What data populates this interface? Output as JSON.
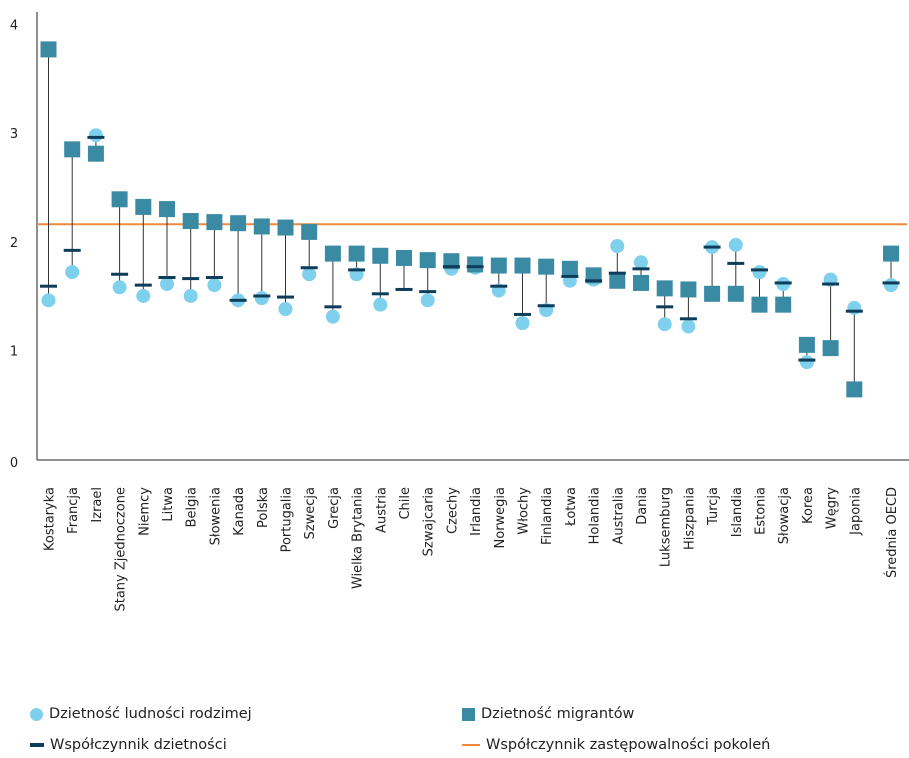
{
  "colors": {
    "native": "#7fd0ec",
    "migrant": "#3b8aa4",
    "total": "#0d3d59",
    "replacement": "#f08a3c",
    "whisker": "#333333",
    "axis": "#222222"
  },
  "legend": {
    "native": "Dzietność ludności rodzimej",
    "migrant": "Dzietność migrantów",
    "total": "Współczynnik dzietności",
    "replacement": "Współczynnik zastępowalności pokoleń"
  },
  "chart_data": {
    "type": "scatter",
    "title": "",
    "xlabel": "",
    "ylabel": "",
    "ylim": [
      0,
      4
    ],
    "yticks": [
      "0",
      "1",
      "2",
      "3",
      "4"
    ],
    "replacement_level": 2.17,
    "categories": [
      "Kostaryka",
      "Francja",
      "Izrael",
      "Stany Zjednoczone",
      "Niemcy",
      "Litwa",
      "Belgia",
      "Słowenia",
      "Kanada",
      "Polska",
      "Portugalia",
      "Szwecja",
      "Grecja",
      "Wielka Brytania",
      "Austria",
      "Chile",
      "Szwajcaria",
      "Czechy",
      "Irlandia",
      "Norwegia",
      "Włochy",
      "Finlandia",
      "Łotwa",
      "Holandia",
      "Australia",
      "Dania",
      "Luksemburg",
      "Hiszpania",
      "Turcja",
      "Islandia",
      "Estonia",
      "Słowacja",
      "Korea",
      "Węgry",
      "Japonia",
      "Średnia OECD"
    ],
    "series": [
      {
        "name": "Dzietność ludności rodzimej",
        "key": "native",
        "values": [
          1.47,
          1.73,
          2.99,
          1.59,
          1.51,
          1.62,
          1.51,
          1.61,
          1.47,
          1.49,
          1.39,
          1.71,
          1.32,
          1.71,
          1.43,
          null,
          1.47,
          1.76,
          1.77,
          1.56,
          1.26,
          1.38,
          1.65,
          1.66,
          1.97,
          1.82,
          1.25,
          1.23,
          1.96,
          1.98,
          1.73,
          1.62,
          0.9,
          1.66,
          1.4,
          1.61
        ]
      },
      {
        "name": "Dzietność migrantów",
        "key": "migrant",
        "values": [
          3.78,
          2.86,
          2.82,
          2.4,
          2.33,
          2.31,
          2.2,
          2.19,
          2.18,
          2.15,
          2.14,
          2.1,
          1.9,
          1.9,
          1.88,
          1.86,
          1.84,
          1.83,
          1.8,
          1.79,
          1.79,
          1.78,
          1.76,
          1.7,
          1.65,
          1.63,
          1.58,
          1.57,
          1.53,
          1.53,
          1.43,
          1.43,
          1.06,
          1.03,
          0.65,
          1.9
        ]
      },
      {
        "name": "Współczynnik dzietności",
        "key": "total",
        "values": [
          1.6,
          1.93,
          2.97,
          1.71,
          1.61,
          1.68,
          1.67,
          1.68,
          1.47,
          1.51,
          1.5,
          1.77,
          1.41,
          1.75,
          1.53,
          1.57,
          1.55,
          1.78,
          1.78,
          1.6,
          1.34,
          1.42,
          1.69,
          1.65,
          1.72,
          1.76,
          1.41,
          1.3,
          1.96,
          1.81,
          1.75,
          1.63,
          0.92,
          1.62,
          1.37,
          1.63
        ]
      }
    ]
  }
}
